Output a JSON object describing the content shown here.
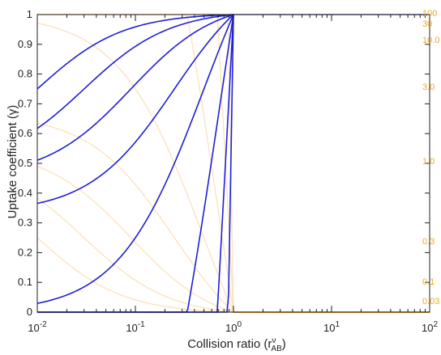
{
  "chart_data": {
    "type": "line",
    "title": "",
    "xlabel": "Collision ratio (r",
    "xlabel_super": "ν",
    "xlabel_sub": "AB",
    "xlabel_close": ")",
    "ylabel": "Uptake coefficient (γ)",
    "xscale": "log",
    "xlim": [
      0.01,
      100
    ],
    "ylim": [
      0,
      1
    ],
    "x_ticks": [
      {
        "mantissa": "10",
        "exp": "-2",
        "value": 0.01
      },
      {
        "mantissa": "10",
        "exp": "-1",
        "value": 0.1
      },
      {
        "mantissa": "10",
        "exp": "0",
        "value": 1
      },
      {
        "mantissa": "10",
        "exp": "1",
        "value": 10
      },
      {
        "mantissa": "10",
        "exp": "2",
        "value": 100
      }
    ],
    "y_ticks": [
      "0",
      "0.1",
      "0.2",
      "0.3",
      "0.4",
      "0.5",
      "0.6",
      "0.7",
      "0.8",
      "0.9",
      "1"
    ],
    "y_tick_values": [
      0,
      0.1,
      0.2,
      0.3,
      0.4,
      0.5,
      0.6,
      0.7,
      0.8,
      0.9,
      1
    ],
    "series_labels": [
      "100",
      "30",
      "10.0",
      "3.0",
      "1.0",
      "0.3",
      "0.1",
      "0.03"
    ],
    "series_values": [
      0.99,
      0.97,
      0.91,
      0.75,
      0.5,
      0.23,
      0.09,
      0.03
    ],
    "colors": {
      "strong_branch": "#1f1fd6",
      "weak_branch": "#f5a623",
      "strong_faint": "#b8b8ee",
      "weak_faint": "#fbe3c0",
      "axis": "#222222"
    }
  }
}
